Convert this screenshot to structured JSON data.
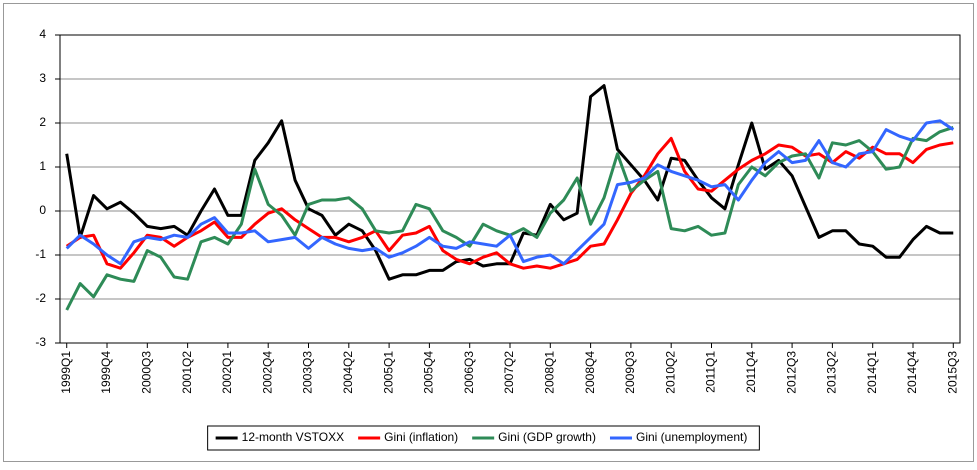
{
  "chart_data": {
    "type": "line",
    "categories": [
      "1999Q1",
      null,
      null,
      "1999Q4",
      null,
      null,
      "2000Q3",
      null,
      null,
      "2001Q2",
      null,
      null,
      "2002Q1",
      null,
      null,
      "2002Q4",
      null,
      null,
      "2003Q3",
      null,
      null,
      "2004Q2",
      null,
      null,
      "2005Q1",
      null,
      null,
      "2005Q4",
      null,
      null,
      "2006Q3",
      null,
      null,
      "2007Q2",
      null,
      null,
      "2008Q1",
      null,
      null,
      "2008Q4",
      null,
      null,
      "2009Q3",
      null,
      null,
      "2010Q2",
      null,
      null,
      "2011Q1",
      null,
      null,
      "2011Q4",
      null,
      null,
      "2012Q3",
      null,
      null,
      "2013Q2",
      null,
      null,
      "2014Q1",
      null,
      null,
      "2014Q4",
      null,
      null,
      "2015Q3"
    ],
    "series": [
      {
        "name": "12-month VSTOXX",
        "color": "#000000",
        "values": [
          1.3,
          -0.6,
          0.35,
          0.05,
          0.2,
          -0.05,
          -0.35,
          -0.4,
          -0.35,
          -0.55,
          0.0,
          0.5,
          -0.1,
          -0.1,
          1.15,
          1.55,
          2.05,
          0.7,
          0.05,
          -0.1,
          -0.55,
          -0.3,
          -0.45,
          -0.9,
          -1.55,
          -1.45,
          -1.45,
          -1.35,
          -1.35,
          -1.15,
          -1.1,
          -1.25,
          -1.2,
          -1.2,
          -0.5,
          -0.55,
          0.15,
          -0.2,
          -0.05,
          2.6,
          2.85,
          1.4,
          1.05,
          0.7,
          0.25,
          1.2,
          1.15,
          0.7,
          0.3,
          0.05,
          1.05,
          2.0,
          0.95,
          1.15,
          0.8,
          0.1,
          -0.6,
          -0.45,
          -0.45,
          -0.75,
          -0.8,
          -1.05,
          -1.05,
          -0.65,
          -0.35,
          -0.5,
          -0.5
        ]
      },
      {
        "name": "Gini (inflation)",
        "color": "#ff0000",
        "values": [
          -0.8,
          -0.6,
          -0.55,
          -1.2,
          -1.3,
          -0.95,
          -0.55,
          -0.6,
          -0.8,
          -0.6,
          -0.45,
          -0.25,
          -0.6,
          -0.6,
          -0.3,
          -0.05,
          0.05,
          -0.2,
          -0.4,
          -0.6,
          -0.6,
          -0.7,
          -0.6,
          -0.45,
          -0.9,
          -0.55,
          -0.5,
          -0.35,
          -0.9,
          -1.1,
          -1.2,
          -1.05,
          -0.95,
          -1.2,
          -1.3,
          -1.25,
          -1.3,
          -1.2,
          -1.1,
          -0.8,
          -0.75,
          -0.2,
          0.4,
          0.8,
          1.3,
          1.65,
          0.9,
          0.5,
          0.45,
          0.7,
          0.95,
          1.15,
          1.3,
          1.5,
          1.45,
          1.25,
          1.3,
          1.1,
          1.35,
          1.2,
          1.45,
          1.3,
          1.3,
          1.1,
          1.4,
          1.5,
          1.55
        ]
      },
      {
        "name": "Gini (GDP growth)",
        "color": "#2e8b57",
        "values": [
          -2.25,
          -1.65,
          -1.95,
          -1.45,
          -1.55,
          -1.6,
          -0.9,
          -1.05,
          -1.5,
          -1.55,
          -0.7,
          -0.6,
          -0.75,
          -0.3,
          0.95,
          0.15,
          -0.1,
          -0.55,
          0.15,
          0.25,
          0.25,
          0.3,
          0.05,
          -0.45,
          -0.5,
          -0.45,
          0.15,
          0.05,
          -0.45,
          -0.6,
          -0.8,
          -0.3,
          -0.45,
          -0.55,
          -0.4,
          -0.6,
          -0.05,
          0.25,
          0.75,
          -0.3,
          0.3,
          1.3,
          0.45,
          0.7,
          0.9,
          -0.4,
          -0.45,
          -0.35,
          -0.55,
          -0.5,
          0.6,
          1.0,
          0.8,
          1.1,
          1.25,
          1.3,
          0.75,
          1.55,
          1.5,
          1.6,
          1.35,
          0.95,
          1.0,
          1.65,
          1.6,
          1.8,
          1.9
        ]
      },
      {
        "name": "Gini (unemployment)",
        "color": "#3366ff",
        "values": [
          -0.85,
          -0.55,
          -0.75,
          -1.0,
          -1.2,
          -0.7,
          -0.6,
          -0.65,
          -0.55,
          -0.6,
          -0.3,
          -0.15,
          -0.5,
          -0.5,
          -0.45,
          -0.7,
          -0.65,
          -0.6,
          -0.85,
          -0.6,
          -0.75,
          -0.85,
          -0.9,
          -0.85,
          -1.05,
          -0.95,
          -0.8,
          -0.6,
          -0.8,
          -0.85,
          -0.7,
          -0.75,
          -0.8,
          -0.55,
          -1.15,
          -1.05,
          -1.0,
          -1.2,
          -0.9,
          -0.6,
          -0.3,
          0.6,
          0.65,
          0.75,
          1.05,
          0.9,
          0.8,
          0.7,
          0.55,
          0.6,
          0.25,
          0.7,
          1.1,
          1.35,
          1.1,
          1.15,
          1.6,
          1.1,
          1.0,
          1.3,
          1.35,
          1.85,
          1.7,
          1.6,
          2.0,
          2.05,
          1.85
        ]
      }
    ],
    "ylim": [
      -3,
      4
    ],
    "yticks": [
      -3,
      -2,
      -1,
      0,
      1,
      2,
      3,
      4
    ],
    "grid": true,
    "legend": "bottom"
  }
}
